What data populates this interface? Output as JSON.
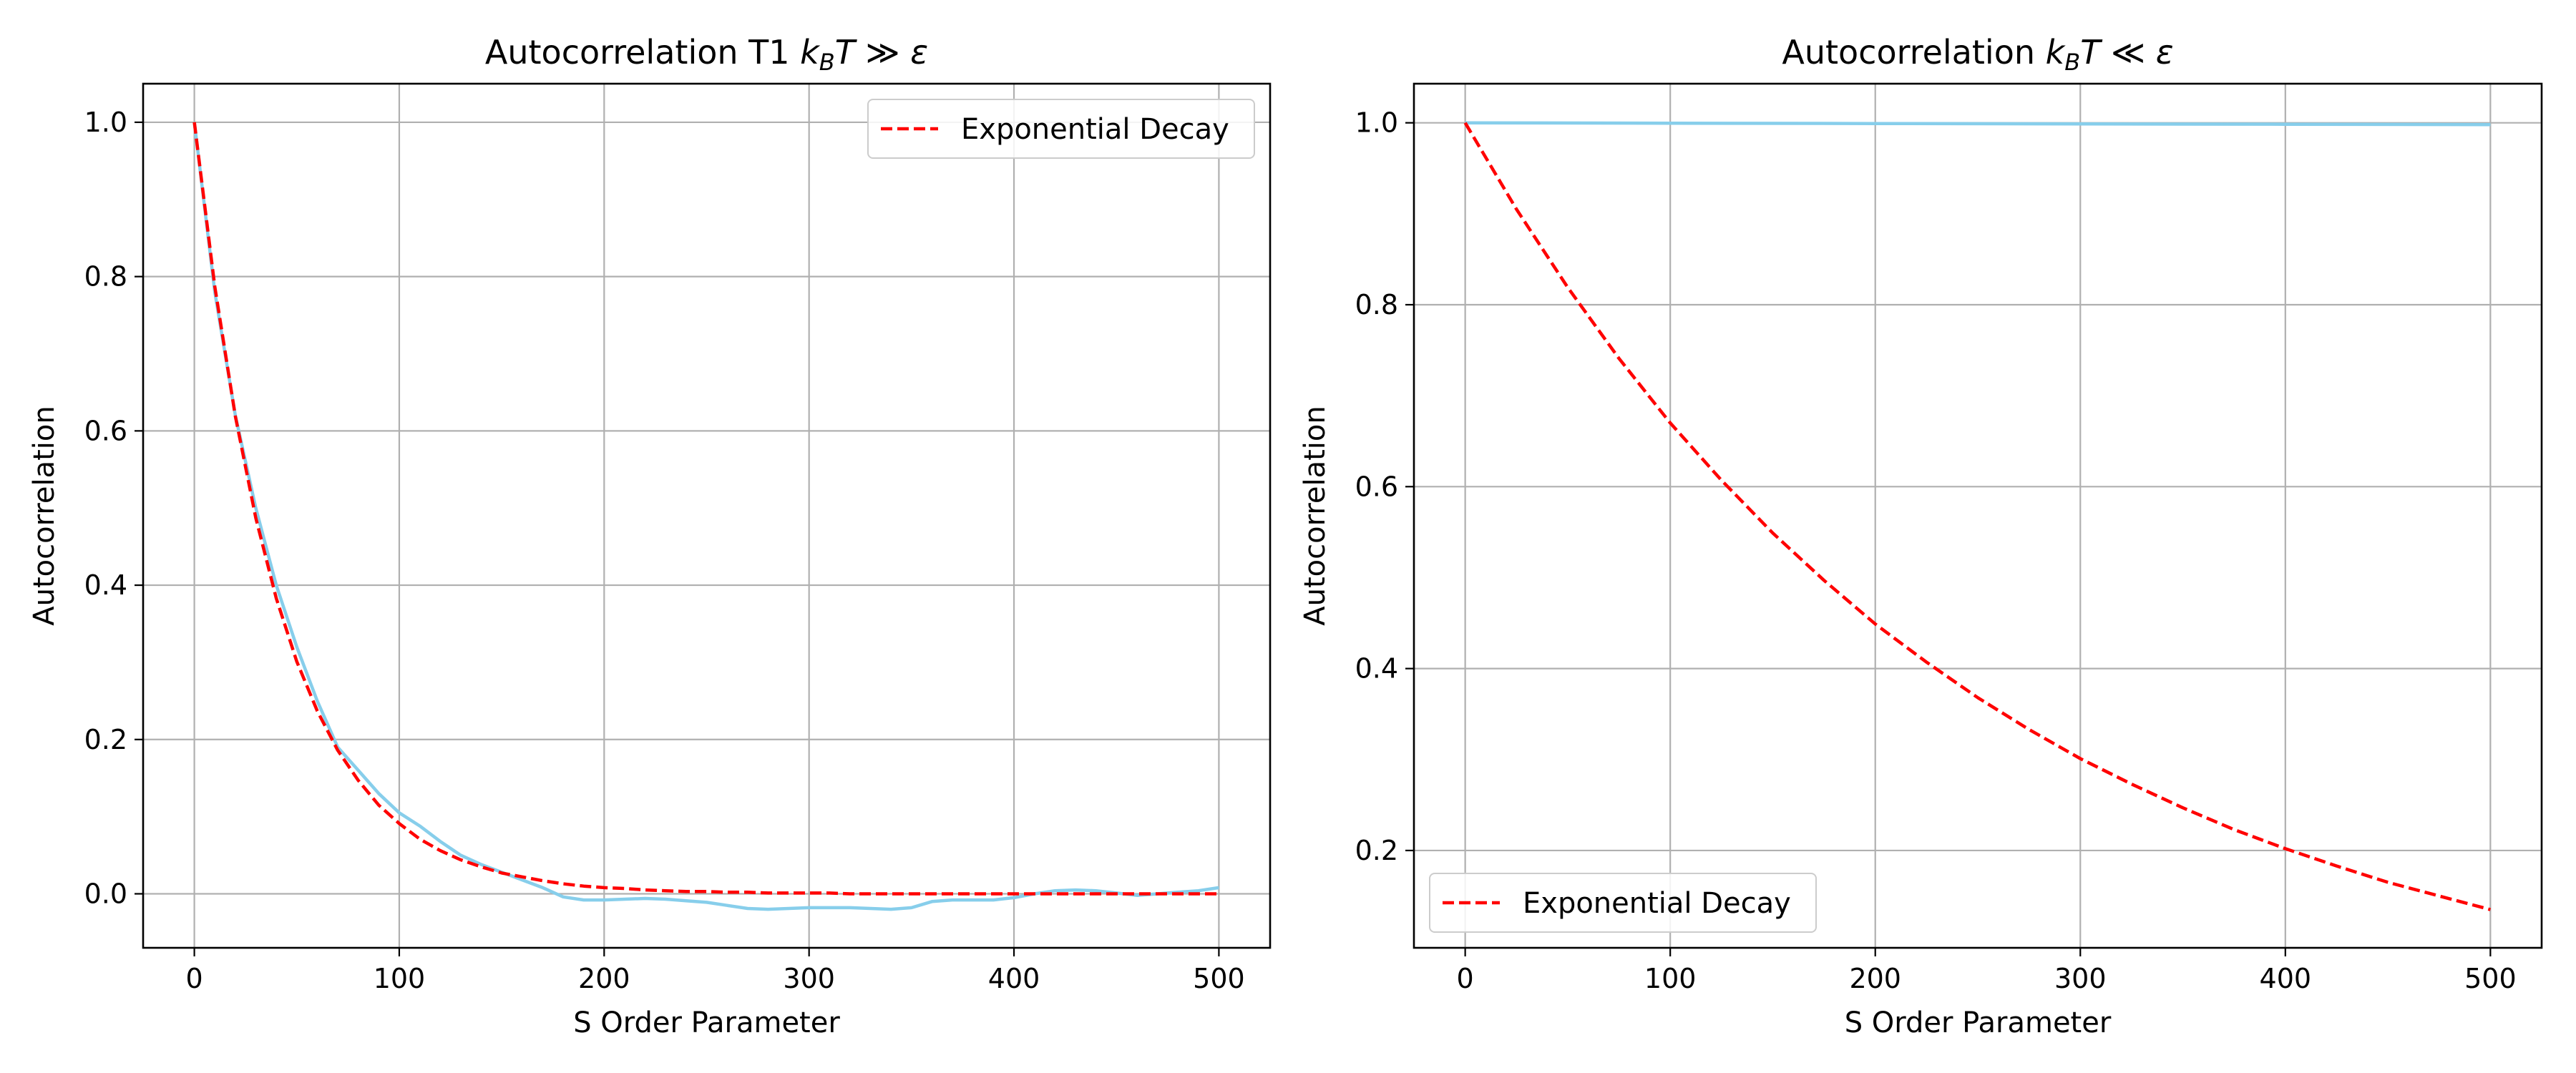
{
  "chart_data": [
    {
      "type": "line",
      "title": "Autocorrelation T1 k_BT ≫ ε",
      "title_parts": {
        "prefix": "Autocorrelation T1 ",
        "k": "k",
        "sub": "B",
        "T": "T",
        "rel": " ≫ ",
        "eps": "ε"
      },
      "xlabel": "S Order Parameter",
      "ylabel": "Autocorrelation",
      "xlim": [
        -25,
        525
      ],
      "ylim": [
        -0.07,
        1.05
      ],
      "xticks": [
        0,
        100,
        200,
        300,
        400,
        500
      ],
      "xtick_labels": [
        "0",
        "100",
        "200",
        "300",
        "400",
        "500"
      ],
      "yticks": [
        0.0,
        0.2,
        0.4,
        0.6,
        0.8,
        1.0
      ],
      "ytick_labels": [
        "0.0",
        "0.2",
        "0.4",
        "0.6",
        "0.8",
        "1.0"
      ],
      "grid": true,
      "legend": {
        "location": "upper-right",
        "entries": [
          "Exponential Decay"
        ]
      },
      "series": [
        {
          "name": "",
          "color": "#87ceeb",
          "style": "solid",
          "x": [
            0,
            10,
            20,
            30,
            40,
            50,
            60,
            70,
            80,
            90,
            100,
            110,
            120,
            130,
            140,
            150,
            160,
            170,
            180,
            190,
            200,
            210,
            220,
            230,
            240,
            250,
            260,
            270,
            280,
            290,
            300,
            310,
            320,
            330,
            340,
            350,
            360,
            370,
            380,
            390,
            400,
            410,
            420,
            430,
            440,
            450,
            460,
            470,
            480,
            490,
            500
          ],
          "y": [
            1.0,
            0.78,
            0.62,
            0.5,
            0.4,
            0.32,
            0.25,
            0.19,
            0.16,
            0.13,
            0.105,
            0.088,
            0.068,
            0.05,
            0.038,
            0.028,
            0.018,
            0.008,
            -0.004,
            -0.008,
            -0.008,
            -0.007,
            -0.006,
            -0.007,
            -0.009,
            -0.011,
            -0.015,
            -0.019,
            -0.02,
            -0.019,
            -0.018,
            -0.018,
            -0.018,
            -0.019,
            -0.02,
            -0.018,
            -0.01,
            -0.008,
            -0.008,
            -0.008,
            -0.005,
            0.0,
            0.004,
            0.005,
            0.004,
            0.001,
            -0.002,
            0.0,
            0.002,
            0.004,
            0.008
          ]
        },
        {
          "name": "Exponential Decay",
          "color": "#ff0000",
          "style": "dashed",
          "x": [
            0,
            10,
            20,
            30,
            40,
            50,
            60,
            70,
            80,
            90,
            100,
            110,
            120,
            130,
            140,
            150,
            160,
            170,
            180,
            190,
            200,
            210,
            220,
            230,
            240,
            250,
            260,
            270,
            280,
            290,
            300,
            310,
            320,
            330,
            340,
            350,
            360,
            370,
            380,
            390,
            400,
            410,
            420,
            430,
            440,
            450,
            460,
            470,
            480,
            490,
            500
          ],
          "y": [
            1.0,
            0.787,
            0.619,
            0.487,
            0.383,
            0.301,
            0.237,
            0.186,
            0.147,
            0.115,
            0.091,
            0.071,
            0.056,
            0.044,
            0.035,
            0.027,
            0.022,
            0.017,
            0.013,
            0.01,
            0.008,
            0.007,
            0.005,
            0.004,
            0.003,
            0.003,
            0.002,
            0.002,
            0.001,
            0.001,
            0.001,
            0.001,
            0.0,
            0.0,
            0.0,
            0.0,
            0.0,
            0.0,
            0.0,
            0.0,
            0.0,
            0.0,
            0.0,
            0.0,
            0.0,
            0.0,
            0.0,
            0.0,
            0.0,
            0.0,
            0.0
          ]
        }
      ]
    },
    {
      "type": "line",
      "title": "Autocorrelation k_BT ≪ ε",
      "title_parts": {
        "prefix": "Autocorrelation ",
        "k": "k",
        "sub": "B",
        "T": "T",
        "rel": " ≪ ",
        "eps": "ε"
      },
      "xlabel": "S Order Parameter",
      "ylabel": "Autocorrelation",
      "xlim": [
        -25,
        525
      ],
      "ylim": [
        0.093,
        1.043
      ],
      "xticks": [
        0,
        100,
        200,
        300,
        400,
        500
      ],
      "xtick_labels": [
        "0",
        "100",
        "200",
        "300",
        "400",
        "500"
      ],
      "yticks": [
        0.2,
        0.4,
        0.6,
        0.8,
        1.0
      ],
      "ytick_labels": [
        "0.2",
        "0.4",
        "0.6",
        "0.8",
        "1.0"
      ],
      "grid": true,
      "legend": {
        "location": "lower-left",
        "entries": [
          "Exponential Decay"
        ]
      },
      "series": [
        {
          "name": "",
          "color": "#87ceeb",
          "style": "solid",
          "x": [
            0,
            100,
            200,
            300,
            400,
            500
          ],
          "y": [
            1.0,
            0.9996,
            0.9992,
            0.9988,
            0.9984,
            0.998
          ]
        },
        {
          "name": "Exponential Decay",
          "color": "#ff0000",
          "style": "dashed",
          "x": [
            0,
            25,
            50,
            75,
            100,
            125,
            150,
            175,
            200,
            225,
            250,
            275,
            300,
            325,
            350,
            375,
            400,
            425,
            450,
            475,
            500
          ],
          "y": [
            1.0,
            0.905,
            0.819,
            0.741,
            0.67,
            0.607,
            0.549,
            0.497,
            0.449,
            0.407,
            0.368,
            0.333,
            0.301,
            0.273,
            0.247,
            0.223,
            0.202,
            0.183,
            0.165,
            0.15,
            0.135
          ]
        }
      ]
    }
  ]
}
